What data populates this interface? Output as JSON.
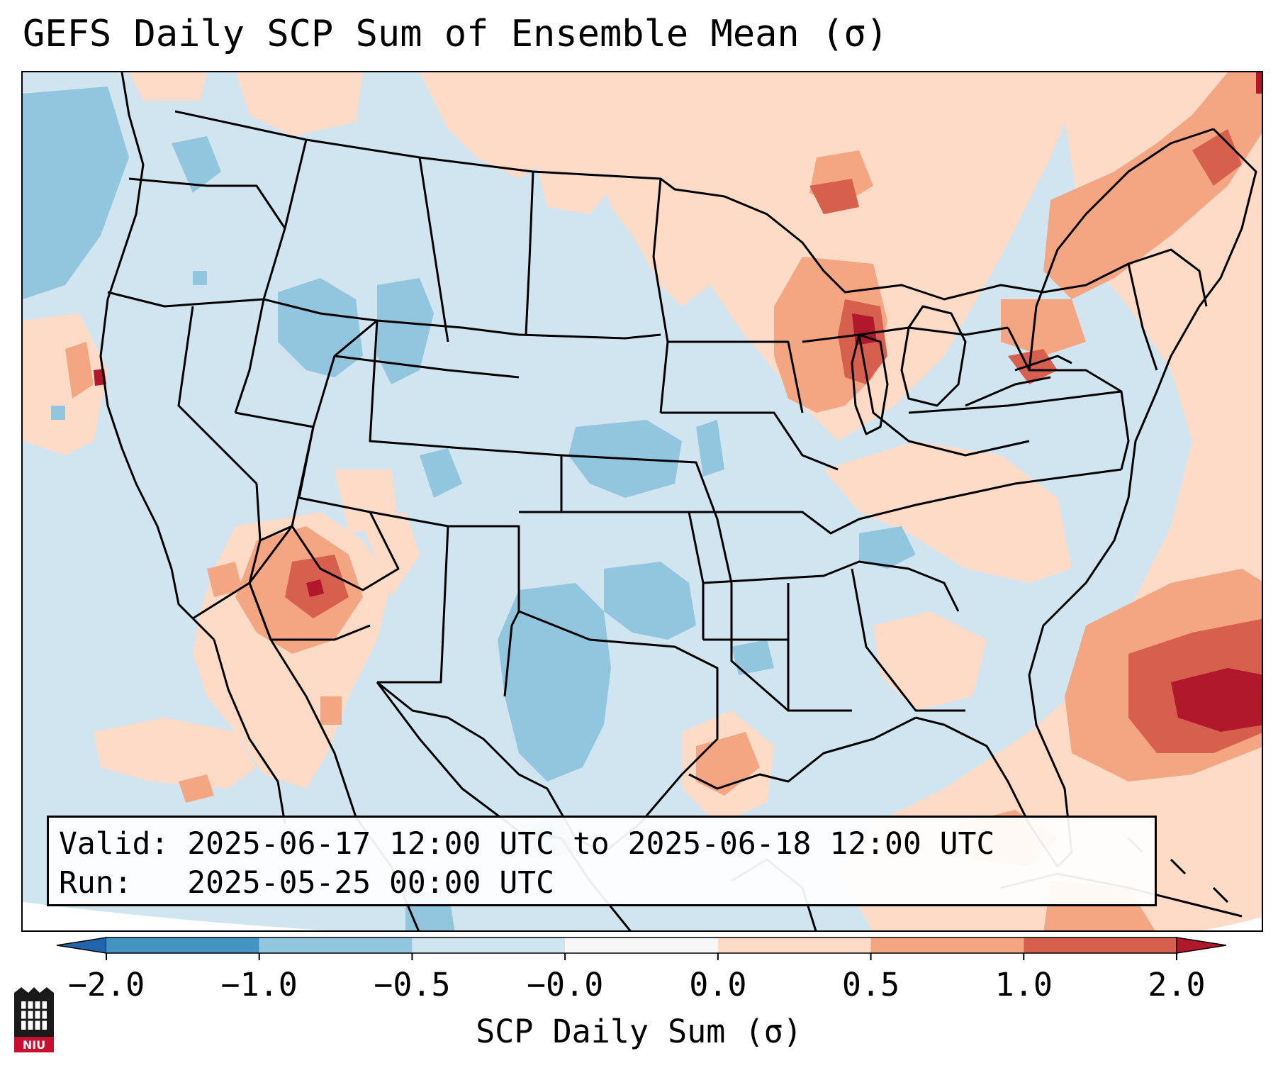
{
  "title": "GEFS Daily SCP Sum of Ensemble Mean (σ)",
  "info": {
    "valid_label": "Valid:",
    "valid_value": "2025-06-17 12:00 UTC to 2025-06-18 12:00 UTC",
    "run_label": "Run:",
    "run_value": "2025-05-25 00:00 UTC"
  },
  "colorbar": {
    "label": "SCP Daily Sum (σ)",
    "ticks": [
      "−2.0",
      "−1.0",
      "−0.5",
      "−0.0",
      "0.0",
      "0.5",
      "1.0",
      "2.0"
    ],
    "bins": [
      {
        "range": "< -2.0",
        "color": "#2166ac"
      },
      {
        "range": "-2.0 to -1.0",
        "color": "#4393c3"
      },
      {
        "range": "-1.0 to -0.5",
        "color": "#92c5de"
      },
      {
        "range": "-0.5 to -0.0",
        "color": "#d1e5f0"
      },
      {
        "range": "-0.0 to 0.0",
        "color": "#f7f7f7"
      },
      {
        "range": "0.0 to 0.5",
        "color": "#fddbc7"
      },
      {
        "range": "0.5 to 1.0",
        "color": "#f4a582"
      },
      {
        "range": "1.0 to 2.0",
        "color": "#d6604d"
      },
      {
        "range": "> 2.0",
        "color": "#b2182b"
      }
    ]
  },
  "logo": {
    "text": "NIU"
  }
}
